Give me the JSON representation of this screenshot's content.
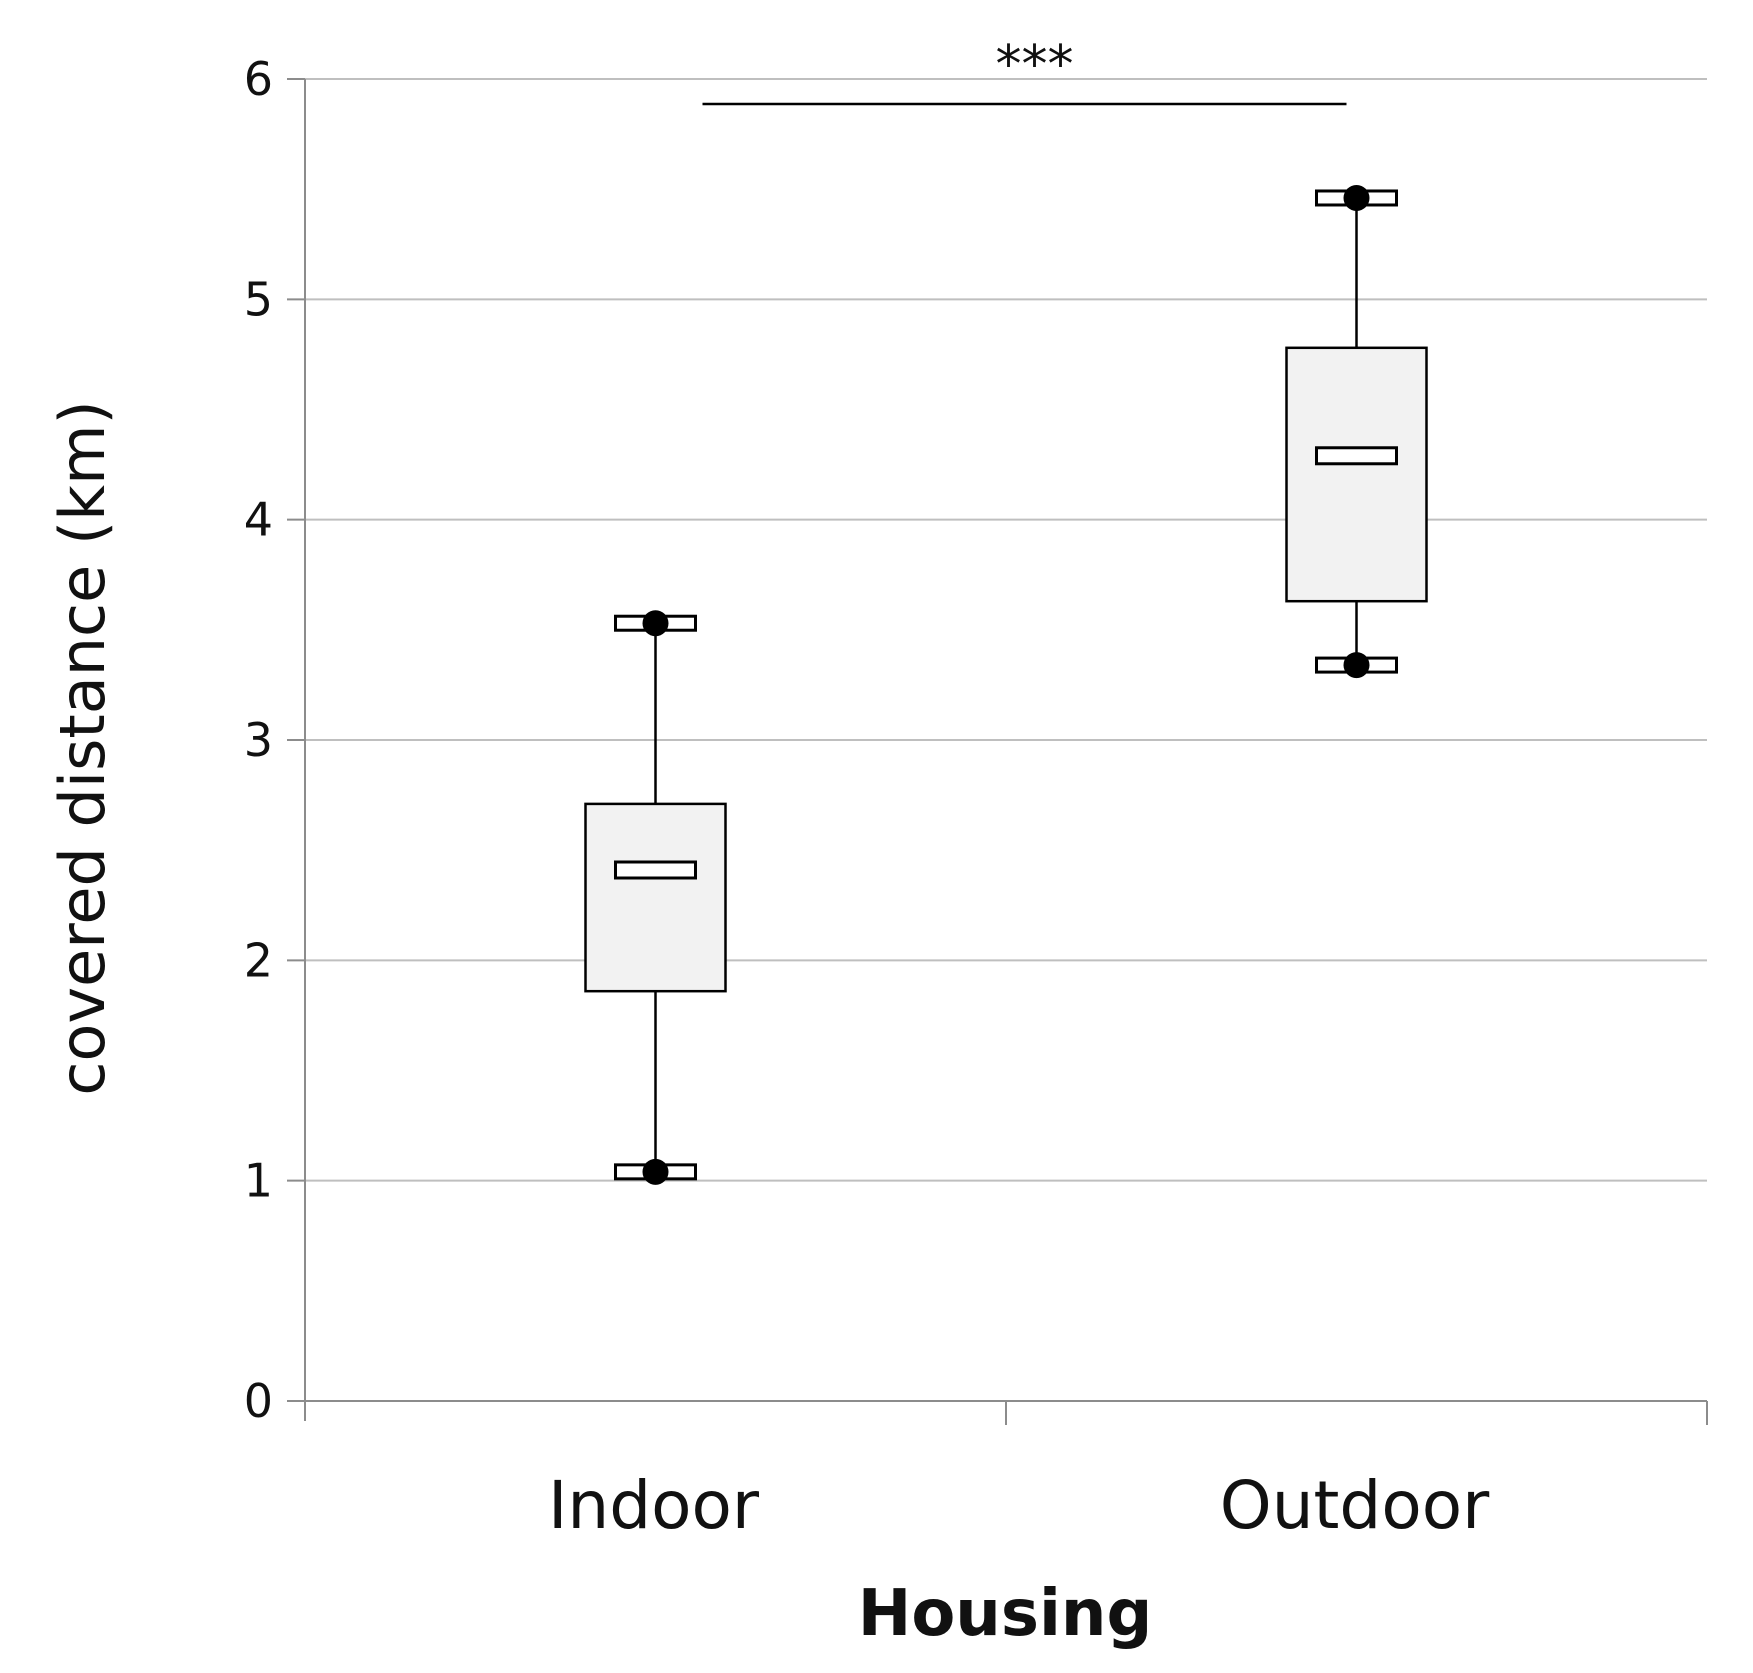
{
  "chart_data": {
    "type": "box",
    "xlabel": "Housing",
    "ylabel": "covered distance (km)",
    "ylim": [
      0,
      6
    ],
    "yticks": [
      0,
      1,
      2,
      3,
      4,
      5,
      6
    ],
    "grid": true,
    "categories": [
      "Indoor",
      "Outdoor"
    ],
    "boxes": [
      {
        "category": "Indoor",
        "min": 1.04,
        "q1": 1.86,
        "median": 2.41,
        "q3": 2.71,
        "max": 3.53
      },
      {
        "category": "Outdoor",
        "min": 3.34,
        "q1": 3.63,
        "median": 4.29,
        "q3": 4.78,
        "max": 5.46
      }
    ],
    "significance": {
      "from": "Indoor",
      "to": "Outdoor",
      "label": "***"
    },
    "colors": {
      "box_fill": "#f2f2f2",
      "grid": "#bfbfbf",
      "axis": "#8c8c8c",
      "ink": "#000000"
    }
  }
}
